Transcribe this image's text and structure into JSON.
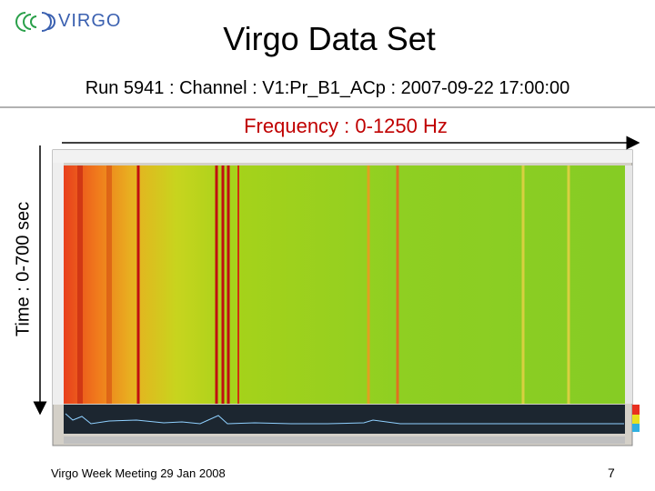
{
  "logo": "VIRGO",
  "title": "Virgo Data Set",
  "subtitle": "Run 5941 : Channel : V1:Pr_B1_ACp : 2007-09-22 17:00:00",
  "x_axis_label": "Frequency : 0-1250 Hz",
  "y_axis_label": "Time : 0-700 sec",
  "footer": "Virgo Week Meeting 29 Jan 2008",
  "page_number": "7"
}
